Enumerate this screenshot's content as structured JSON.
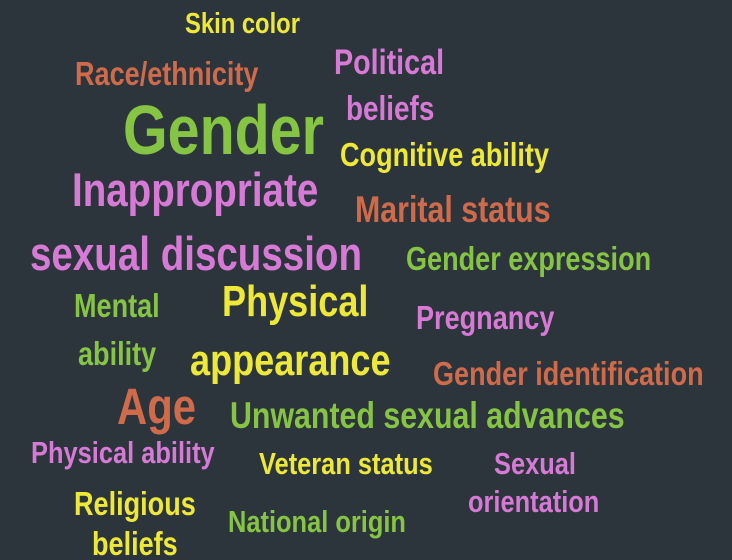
{
  "words": [
    {
      "text": "Skin color",
      "color": "#eee836"
    },
    {
      "text": "Race/ethnicity",
      "color": "#cf6b4a"
    },
    {
      "text": "Political",
      "color": "#d67ad6"
    },
    {
      "text": "beliefs",
      "color": "#d67ad6"
    },
    {
      "text": "Gender",
      "color": "#86c444"
    },
    {
      "text": "Cognitive ability",
      "color": "#eee836"
    },
    {
      "text": "Inappropriate",
      "color": "#d67ad6"
    },
    {
      "text": "Marital status",
      "color": "#cf6b4a"
    },
    {
      "text": "sexual discussion",
      "color": "#d67ad6"
    },
    {
      "text": "Gender expression",
      "color": "#86c444"
    },
    {
      "text": "Mental",
      "color": "#86c444"
    },
    {
      "text": "Physical",
      "color": "#eee836"
    },
    {
      "text": "Pregnancy",
      "color": "#d67ad6"
    },
    {
      "text": "ability",
      "color": "#86c444"
    },
    {
      "text": "appearance",
      "color": "#eee836"
    },
    {
      "text": "Gender identification",
      "color": "#cf6b4a"
    },
    {
      "text": "Age",
      "color": "#cf6b4a"
    },
    {
      "text": "Unwanted sexual advances",
      "color": "#86c444"
    },
    {
      "text": "Physical ability",
      "color": "#d67ad6"
    },
    {
      "text": "Veteran status",
      "color": "#eee836"
    },
    {
      "text": "Sexual",
      "color": "#d67ad6"
    },
    {
      "text": "orientation",
      "color": "#d67ad6"
    },
    {
      "text": "Religious",
      "color": "#eee836"
    },
    {
      "text": "National origin",
      "color": "#86c444"
    },
    {
      "text": "beliefs",
      "color": "#eee836"
    }
  ]
}
